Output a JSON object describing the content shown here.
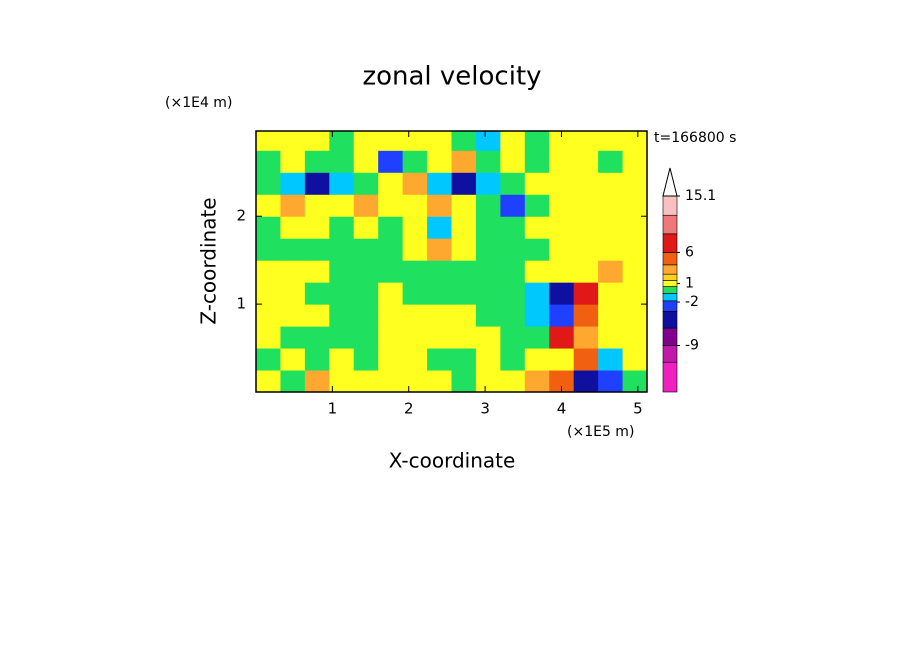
{
  "chart_data": {
    "type": "contour",
    "title": "zonal velocity",
    "subtitle": "t=166800 s",
    "xlabel": "X-coordinate",
    "ylabel": "Z-coordinate",
    "x_unit": "(×1E5 m)",
    "y_unit": "(×1E4 m)",
    "xlim": [
      0,
      5.12
    ],
    "ylim": [
      0,
      2.97
    ],
    "xticks": [
      1,
      2,
      3,
      4,
      5
    ],
    "yticks": [
      1,
      2
    ],
    "x": [
      0.16,
      0.48,
      0.8,
      1.12,
      1.44,
      1.76,
      2.08,
      2.4,
      2.72,
      3.04,
      3.36,
      3.68,
      4.0,
      4.32,
      4.64,
      4.96
    ],
    "z": [
      0.125,
      0.375,
      0.625,
      0.875,
      1.125,
      1.375,
      1.625,
      1.875,
      2.125,
      2.375,
      2.625,
      2.875
    ],
    "values": [
      [
        1,
        0,
        3,
        1,
        1,
        1,
        1,
        1,
        0,
        1,
        1,
        3,
        5,
        -5,
        -2.5,
        0
      ],
      [
        0,
        1,
        0,
        1,
        0,
        1,
        1,
        0,
        0,
        1,
        0,
        1,
        1,
        5,
        -1.2,
        1
      ],
      [
        1,
        0,
        0,
        0,
        0,
        1,
        1,
        1,
        1,
        1,
        0,
        0,
        7,
        3,
        1,
        1
      ],
      [
        1,
        1,
        1,
        0,
        0,
        1,
        1,
        1,
        1,
        0,
        0,
        -1.2,
        -2.5,
        5,
        1,
        1
      ],
      [
        1,
        1,
        0,
        0,
        0,
        1,
        0,
        0,
        0,
        0,
        0,
        -1.2,
        -5,
        7,
        1,
        1
      ],
      [
        1,
        1,
        1,
        0,
        0,
        0,
        0,
        0,
        0,
        0,
        0,
        1,
        1,
        1,
        3,
        1
      ],
      [
        0,
        0,
        0,
        0,
        0,
        0,
        1,
        3,
        1,
        0,
        0,
        0,
        1,
        1,
        1,
        1
      ],
      [
        0,
        1,
        1,
        0,
        1,
        0,
        1,
        -1.2,
        1,
        0,
        0,
        1,
        1,
        1,
        1,
        1
      ],
      [
        1,
        3,
        1,
        1,
        3,
        1,
        1,
        3,
        1,
        0,
        -2.5,
        0,
        1,
        1,
        1,
        1
      ],
      [
        0,
        -1.2,
        -5,
        -1.2,
        0,
        1,
        3,
        -1.2,
        -5,
        -1.2,
        0,
        1,
        1,
        1,
        1,
        1
      ],
      [
        0,
        1,
        0,
        0,
        1,
        -2.5,
        0,
        1,
        3,
        0,
        1,
        0,
        1,
        1,
        0,
        1
      ],
      [
        1,
        1,
        1,
        0,
        1,
        1,
        1,
        1,
        0,
        -1.2,
        1,
        0,
        1,
        1,
        1,
        1
      ]
    ],
    "levels": [
      -16.5,
      -11.7,
      -9,
      -6.2,
      -3.5,
      -1.8,
      -0.6,
      0.5,
      1.5,
      2.5,
      4,
      6,
      9,
      12,
      15.1
    ],
    "colors": [
      "#f020c0",
      "#c018a8",
      "#800090",
      "#1010a0",
      "#2040ff",
      "#00c8ff",
      "#20e060",
      "#ffff20",
      "#ffd020",
      "#ffa830",
      "#f06010",
      "#e01818",
      "#f07878",
      "#f8c0c0"
    ],
    "colorbar_ticks": [
      -9,
      -2,
      1,
      6,
      15.1
    ]
  }
}
